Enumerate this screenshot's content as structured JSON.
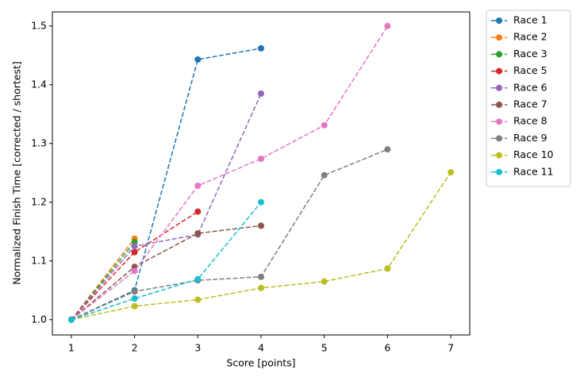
{
  "chart_data": {
    "type": "line",
    "xlabel": "Score [points]",
    "ylabel": "Normalized Finish Time [corrected / shortest]",
    "xlim": [
      0.7,
      7.3
    ],
    "ylim": [
      0.974,
      1.524
    ],
    "xticks": [
      1,
      2,
      3,
      4,
      5,
      6,
      7
    ],
    "yticks": [
      {
        "value": 1,
        "label": "1.0"
      },
      {
        "value": 1.1,
        "label": "1.1"
      },
      {
        "value": 1.2,
        "label": "1.2"
      },
      {
        "value": 1.3,
        "label": "1.3"
      },
      {
        "value": 1.4,
        "label": "1.4"
      },
      {
        "value": 1.5,
        "label": "1.5"
      }
    ],
    "legend": "outside-upper-right",
    "line_style": "dashed",
    "series": [
      {
        "name": "Race 1",
        "color": "#1f77b4",
        "x": [
          1,
          2,
          3,
          4
        ],
        "values": [
          1.0,
          1.05,
          1.443,
          1.462
        ]
      },
      {
        "name": "Race 2",
        "color": "#ff7f0e",
        "x": [
          1,
          2
        ],
        "values": [
          1.0,
          1.138
        ]
      },
      {
        "name": "Race 3",
        "color": "#2ca02c",
        "x": [
          1,
          2
        ],
        "values": [
          1.0,
          1.132
        ]
      },
      {
        "name": "Race 5",
        "color": "#d62728",
        "x": [
          1,
          2,
          3
        ],
        "values": [
          1.0,
          1.115,
          1.184
        ]
      },
      {
        "name": "Race 6",
        "color": "#9467bd",
        "x": [
          1,
          2,
          3,
          4
        ],
        "values": [
          1.0,
          1.125,
          1.145,
          1.385
        ]
      },
      {
        "name": "Race 7",
        "color": "#8c564b",
        "x": [
          1,
          2,
          3,
          4
        ],
        "values": [
          1.0,
          1.09,
          1.147,
          1.16
        ]
      },
      {
        "name": "Race 8",
        "color": "#e377c2",
        "x": [
          1,
          2,
          3,
          4,
          5,
          6
        ],
        "values": [
          1.0,
          1.083,
          1.228,
          1.274,
          1.331,
          1.5
        ]
      },
      {
        "name": "Race 9",
        "color": "#7f7f7f",
        "x": [
          1,
          2,
          3,
          4,
          5,
          6
        ],
        "values": [
          1.0,
          1.048,
          1.067,
          1.073,
          1.246,
          1.29
        ]
      },
      {
        "name": "Race 10",
        "color": "#bcbd22",
        "x": [
          1,
          2,
          3,
          4,
          5,
          6,
          7
        ],
        "values": [
          1.0,
          1.023,
          1.034,
          1.054,
          1.065,
          1.087,
          1.251
        ]
      },
      {
        "name": "Race 11",
        "color": "#17becf",
        "x": [
          1,
          2,
          3,
          4
        ],
        "values": [
          1.0,
          1.036,
          1.069,
          1.2
        ]
      }
    ]
  }
}
